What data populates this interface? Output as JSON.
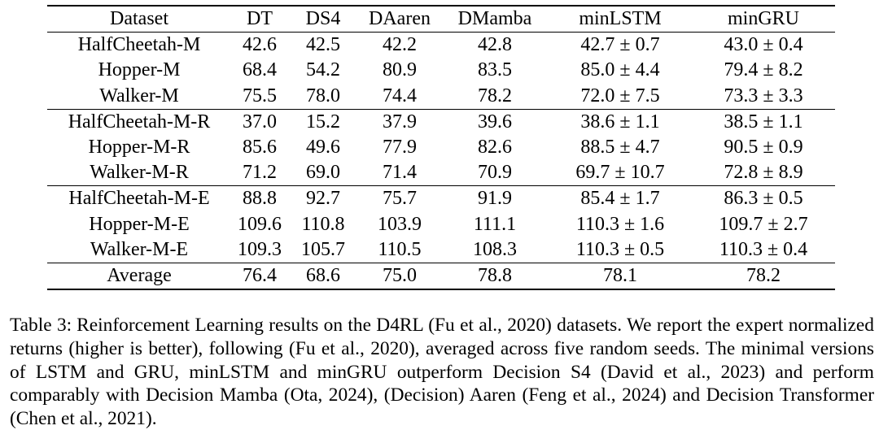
{
  "table": {
    "columns": [
      "Dataset",
      "DT",
      "DS4",
      "DAaren",
      "DMamba",
      "minLSTM",
      "minGRU"
    ],
    "groups": [
      [
        [
          "HalfCheetah-M",
          "42.6",
          "42.5",
          "42.2",
          "42.8",
          "42.7 ± 0.7",
          "43.0 ± 0.4"
        ],
        [
          "Hopper-M",
          "68.4",
          "54.2",
          "80.9",
          "83.5",
          "85.0 ± 4.4",
          "79.4 ± 8.2"
        ],
        [
          "Walker-M",
          "75.5",
          "78.0",
          "74.4",
          "78.2",
          "72.0 ± 7.5",
          "73.3 ± 3.3"
        ]
      ],
      [
        [
          "HalfCheetah-M-R",
          "37.0",
          "15.2",
          "37.9",
          "39.6",
          "38.6 ± 1.1",
          "38.5 ± 1.1"
        ],
        [
          "Hopper-M-R",
          "85.6",
          "49.6",
          "77.9",
          "82.6",
          "88.5 ± 4.7",
          "90.5 ± 0.9"
        ],
        [
          "Walker-M-R",
          "71.2",
          "69.0",
          "71.4",
          "70.9",
          "69.7 ± 10.7",
          "72.8 ± 8.9"
        ]
      ],
      [
        [
          "HalfCheetah-M-E",
          "88.8",
          "92.7",
          "75.7",
          "91.9",
          "85.4 ± 1.7",
          "86.3 ± 0.5"
        ],
        [
          "Hopper-M-E",
          "109.6",
          "110.8",
          "103.9",
          "111.1",
          "110.3 ± 1.6",
          "109.7 ± 2.7"
        ],
        [
          "Walker-M-E",
          "109.3",
          "105.7",
          "110.5",
          "108.3",
          "110.3 ± 0.5",
          "110.3 ± 0.4"
        ]
      ],
      [
        [
          "Average",
          "76.4",
          "68.6",
          "75.0",
          "78.8",
          "78.1",
          "78.2"
        ]
      ]
    ]
  },
  "caption": {
    "label": "Table 3:",
    "text": "Reinforcement Learning results on the D4RL (Fu et al., 2020) datasets. We report the expert normalized returns (higher is better), following (Fu et al., 2020), averaged across five random seeds. The minimal versions of LSTM and GRU, minLSTM and minGRU outperform Decision S4 (David et al., 2023) and perform comparably with Decision Mamba (Ota, 2024), (Decision) Aaren (Feng et al., 2024) and Decision Transformer (Chen et al., 2021)."
  }
}
